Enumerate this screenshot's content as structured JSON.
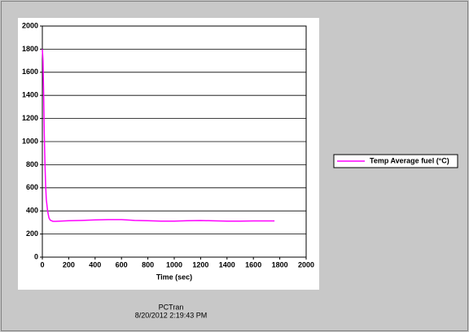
{
  "chart_data": {
    "type": "line",
    "x_label": "Time (sec)",
    "x": [
      0,
      5,
      10,
      15,
      20,
      25,
      30,
      40,
      50,
      60,
      80,
      100,
      200,
      300,
      400,
      500,
      600,
      700,
      800,
      900,
      1000,
      1100,
      1200,
      1300,
      1400,
      1500,
      1600,
      1700,
      1760
    ],
    "series": [
      {
        "name": "Temp Average fuel (°C)",
        "color": "#ff00ff",
        "values": [
          1800,
          1700,
          1400,
          1050,
          800,
          620,
          500,
          400,
          340,
          320,
          310,
          310,
          315,
          318,
          322,
          325,
          325,
          318,
          315,
          312,
          312,
          315,
          317,
          314,
          312,
          312,
          313,
          313,
          313
        ]
      }
    ],
    "xlim": [
      0,
      2000
    ],
    "xticks": [
      0,
      200,
      400,
      600,
      800,
      1000,
      1200,
      1400,
      1600,
      1800,
      2000
    ],
    "ylim": [
      0,
      2000
    ],
    "yticks": [
      0,
      200,
      400,
      600,
      800,
      1000,
      1200,
      1400,
      1600,
      1800,
      2000
    ],
    "grid": true,
    "legend": "right"
  },
  "footer": {
    "app": "PCTran",
    "timestamp": "8/20/2012 2:19:43 PM"
  }
}
